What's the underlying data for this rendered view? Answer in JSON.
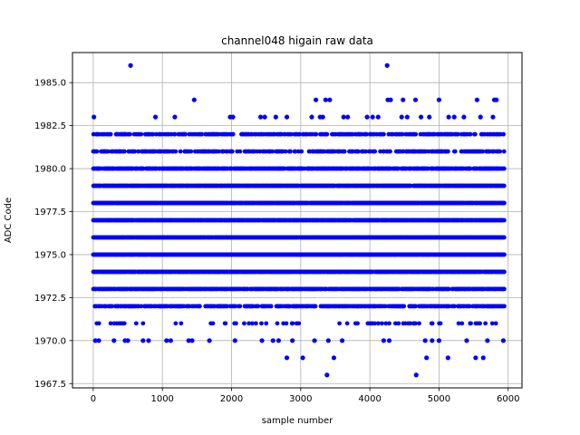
{
  "chart_data": {
    "type": "scatter",
    "title": "channel048 higain raw data",
    "xlabel": "sample number",
    "ylabel": "ADC Code",
    "xlim": [
      -300,
      6200
    ],
    "ylim": [
      1967.25,
      1986.75
    ],
    "xticks": [
      0,
      1000,
      2000,
      3000,
      4000,
      5000,
      6000
    ],
    "yticks": [
      1967.5,
      1970.0,
      1972.5,
      1975.0,
      1977.5,
      1980.0,
      1982.5,
      1985.0
    ],
    "xtick_labels": [
      "0",
      "1000",
      "2000",
      "3000",
      "4000",
      "5000",
      "6000"
    ],
    "ytick_labels": [
      "1967.5",
      "1970.0",
      "1972.5",
      "1975.0",
      "1977.5",
      "1980.0",
      "1982.5",
      "1985.0"
    ],
    "grid": true,
    "marker_color": "#0000ff",
    "x_range": [
      0,
      5940
    ],
    "levels": [
      {
        "y": 1976,
        "density": 0.98
      },
      {
        "y": 1975,
        "density": 0.98
      },
      {
        "y": 1978,
        "density": 0.97
      },
      {
        "y": 1977,
        "density": 0.92
      },
      {
        "y": 1974,
        "density": 0.92
      },
      {
        "y": 1979,
        "density": 0.9
      },
      {
        "y": 1980,
        "density": 0.75
      },
      {
        "y": 1973,
        "density": 0.75
      },
      {
        "y": 1972,
        "density": 0.55
      },
      {
        "y": 1981,
        "density": 0.45
      },
      {
        "y": 1982,
        "density": 0.4
      },
      {
        "y": 1971,
        "density": 0.12
      }
    ],
    "sparse_points": [
      {
        "x": 540,
        "y": 1986
      },
      {
        "x": 4250,
        "y": 1986
      },
      {
        "x": 1460,
        "y": 1984
      },
      {
        "x": 3220,
        "y": 1984
      },
      {
        "x": 3360,
        "y": 1984
      },
      {
        "x": 3420,
        "y": 1984
      },
      {
        "x": 4260,
        "y": 1984
      },
      {
        "x": 4300,
        "y": 1984
      },
      {
        "x": 4480,
        "y": 1984
      },
      {
        "x": 4660,
        "y": 1984
      },
      {
        "x": 5000,
        "y": 1984
      },
      {
        "x": 5550,
        "y": 1984
      },
      {
        "x": 5800,
        "y": 1984
      },
      {
        "x": 5830,
        "y": 1984
      },
      {
        "x": 10,
        "y": 1983
      },
      {
        "x": 900,
        "y": 1983
      },
      {
        "x": 1180,
        "y": 1983
      },
      {
        "x": 1980,
        "y": 1983
      },
      {
        "x": 2020,
        "y": 1983
      },
      {
        "x": 2420,
        "y": 1983
      },
      {
        "x": 2480,
        "y": 1983
      },
      {
        "x": 2640,
        "y": 1983
      },
      {
        "x": 2800,
        "y": 1983
      },
      {
        "x": 3160,
        "y": 1983
      },
      {
        "x": 3280,
        "y": 1983
      },
      {
        "x": 3320,
        "y": 1983
      },
      {
        "x": 3620,
        "y": 1983
      },
      {
        "x": 3680,
        "y": 1983
      },
      {
        "x": 3960,
        "y": 1983
      },
      {
        "x": 4040,
        "y": 1983
      },
      {
        "x": 4120,
        "y": 1983
      },
      {
        "x": 4460,
        "y": 1983
      },
      {
        "x": 4540,
        "y": 1983
      },
      {
        "x": 4740,
        "y": 1983
      },
      {
        "x": 4860,
        "y": 1983
      },
      {
        "x": 5140,
        "y": 1983
      },
      {
        "x": 5220,
        "y": 1983
      },
      {
        "x": 5360,
        "y": 1983
      },
      {
        "x": 5600,
        "y": 1983
      },
      {
        "x": 5780,
        "y": 1983
      },
      {
        "x": 30,
        "y": 1970
      },
      {
        "x": 80,
        "y": 1970
      },
      {
        "x": 300,
        "y": 1970
      },
      {
        "x": 460,
        "y": 1970
      },
      {
        "x": 500,
        "y": 1970
      },
      {
        "x": 720,
        "y": 1970
      },
      {
        "x": 800,
        "y": 1970
      },
      {
        "x": 1060,
        "y": 1970
      },
      {
        "x": 1120,
        "y": 1970
      },
      {
        "x": 1380,
        "y": 1970
      },
      {
        "x": 1430,
        "y": 1970
      },
      {
        "x": 1680,
        "y": 1970
      },
      {
        "x": 2050,
        "y": 1970
      },
      {
        "x": 2440,
        "y": 1970
      },
      {
        "x": 2600,
        "y": 1970
      },
      {
        "x": 2680,
        "y": 1970
      },
      {
        "x": 2880,
        "y": 1970
      },
      {
        "x": 3200,
        "y": 1970
      },
      {
        "x": 3400,
        "y": 1970
      },
      {
        "x": 3600,
        "y": 1970
      },
      {
        "x": 4200,
        "y": 1970
      },
      {
        "x": 4280,
        "y": 1970
      },
      {
        "x": 4800,
        "y": 1970
      },
      {
        "x": 4900,
        "y": 1970
      },
      {
        "x": 5000,
        "y": 1970
      },
      {
        "x": 5400,
        "y": 1970
      },
      {
        "x": 5700,
        "y": 1970
      },
      {
        "x": 5930,
        "y": 1970
      },
      {
        "x": 2800,
        "y": 1969
      },
      {
        "x": 3030,
        "y": 1969
      },
      {
        "x": 3480,
        "y": 1969
      },
      {
        "x": 4820,
        "y": 1969
      },
      {
        "x": 5130,
        "y": 1969
      },
      {
        "x": 5530,
        "y": 1969
      },
      {
        "x": 5640,
        "y": 1969
      },
      {
        "x": 3380,
        "y": 1968
      },
      {
        "x": 4670,
        "y": 1968
      }
    ]
  }
}
